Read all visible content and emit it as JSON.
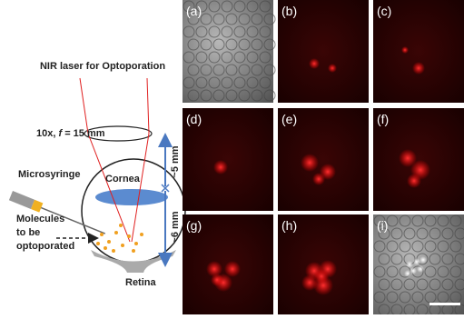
{
  "diagram": {
    "laser_label": "NIR laser for Optoporation",
    "lens_label": [
      "10x, ",
      "f",
      " = 15 mm"
    ],
    "dim_upper": "~5 mm",
    "dim_lower": "~6 mm",
    "syringe_label": "Microsyringe",
    "cornea_label": "Cornea",
    "molecules_label": [
      "Molecules",
      "to be",
      "optoporated"
    ],
    "retina_label": "Retina"
  },
  "panels": [
    "(a)",
    "(b)",
    "(c)",
    "(d)",
    "(e)",
    "(f)",
    "(g)",
    "(h)",
    "(i)"
  ]
}
